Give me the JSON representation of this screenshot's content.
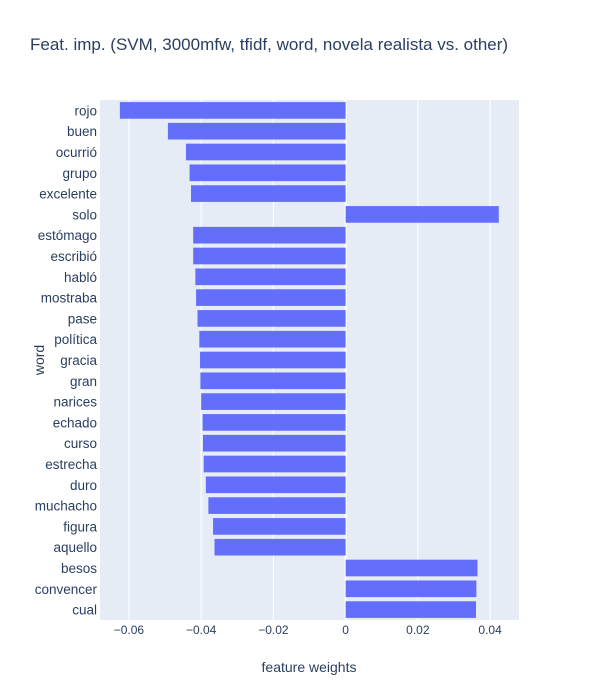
{
  "chart_data": {
    "type": "bar",
    "orientation": "horizontal",
    "title": "Feat. imp. (SVM, 3000mfw, tfidf, word, novela realista vs. other)",
    "xlabel": "feature weights",
    "ylabel": "word",
    "xlim": [
      -0.068,
      0.048
    ],
    "xticks": [
      -0.06,
      -0.04,
      -0.02,
      0,
      0.02,
      0.04
    ],
    "xtick_labels": [
      "−0.06",
      "−0.04",
      "−0.02",
      "0",
      "0.02",
      "0.04"
    ],
    "grid": true,
    "bar_color": "#636efa",
    "plot_background": "#e5ecf6",
    "categories": [
      "rojo",
      "buen",
      "ocurrió",
      "grupo",
      "excelente",
      "solo",
      "estómago",
      "escribió",
      "habló",
      "mostraba",
      "pase",
      "política",
      "gracia",
      "gran",
      "narices",
      "echado",
      "curso",
      "estrecha",
      "duro",
      "muchacho",
      "figura",
      "aquello",
      "besos",
      "convencer",
      "cual"
    ],
    "values": [
      -0.0625,
      -0.0492,
      -0.0442,
      -0.0432,
      -0.0428,
      0.0424,
      -0.0422,
      -0.0422,
      -0.0416,
      -0.0414,
      -0.041,
      -0.0405,
      -0.0403,
      -0.0402,
      -0.04,
      -0.0396,
      -0.0395,
      -0.0393,
      -0.0387,
      -0.038,
      -0.0367,
      -0.0363,
      0.0365,
      0.0362,
      0.0361
    ]
  }
}
